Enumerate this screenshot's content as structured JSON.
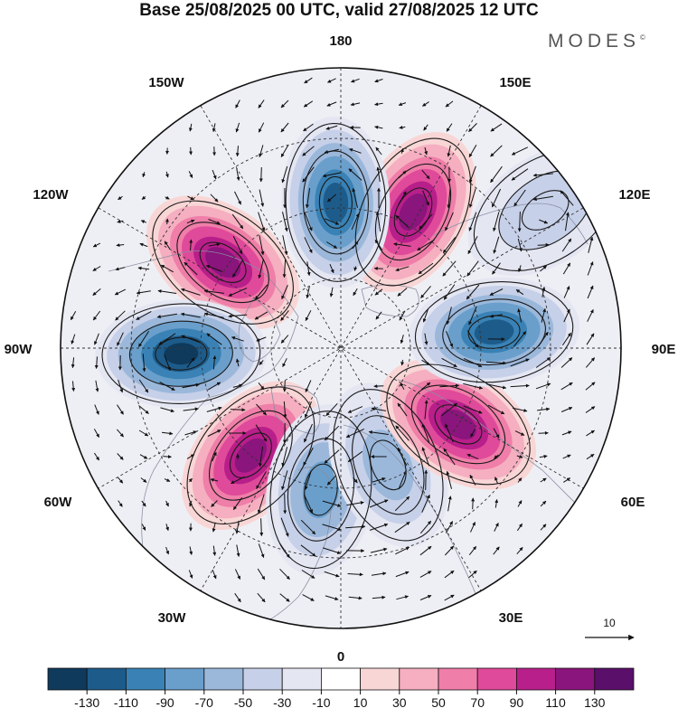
{
  "title": "Base 25/08/2025 00 UTC, valid 27/08/2025 12 UTC",
  "logo": "MODES",
  "logo_mark": "©",
  "longitude_labels": {
    "lon_180": "180",
    "lon_150e": "150E",
    "lon_120e": "120E",
    "lon_90e": "90E",
    "lon_60e": "60E",
    "lon_30e": "30E",
    "lon_0": "0",
    "lon_30w": "30W",
    "lon_60w": "60W",
    "lon_90w": "90W",
    "lon_120w": "120W",
    "lon_150w": "150W"
  },
  "vector_reference": "10",
  "colorbar": {
    "tick_labels": [
      "-130",
      "-110",
      "-90",
      "-70",
      "-50",
      "-30",
      "-10",
      "10",
      "30",
      "50",
      "70",
      "90",
      "110",
      "130"
    ],
    "colors": [
      "#0f3a5c",
      "#1d5b8a",
      "#3a82b5",
      "#6a9fcc",
      "#9bb8db",
      "#c6d0e8",
      "#e4e6f2",
      "#ffffff",
      "#f9d6d6",
      "#f5afc0",
      "#ef7ea8",
      "#e04a9a",
      "#b81f8a",
      "#8a157c",
      "#5a0f6a"
    ]
  },
  "anomaly_cells": [
    {
      "name": "cell-150e",
      "lon": 152,
      "r": 0.55,
      "value": 120
    },
    {
      "name": "cell-180",
      "lon": 182,
      "r": 0.52,
      "value": -120
    },
    {
      "name": "cell-120w",
      "lon": 234,
      "r": 0.52,
      "value": 110
    },
    {
      "name": "cell-90w",
      "lon": 272,
      "r": 0.57,
      "value": -135
    },
    {
      "name": "cell-45w",
      "lon": 320,
      "r": 0.5,
      "value": 120
    },
    {
      "name": "cell-10w",
      "lon": 352,
      "r": 0.51,
      "value": -70
    },
    {
      "name": "cell-25e",
      "lon": 22,
      "r": 0.45,
      "value": -60
    },
    {
      "name": "cell-60e",
      "lon": 57,
      "r": 0.5,
      "value": 120
    },
    {
      "name": "cell-95e",
      "lon": 96,
      "r": 0.55,
      "value": -115
    },
    {
      "name": "cell-125e",
      "lon": 124,
      "r": 0.88,
      "value": -40
    }
  ]
}
